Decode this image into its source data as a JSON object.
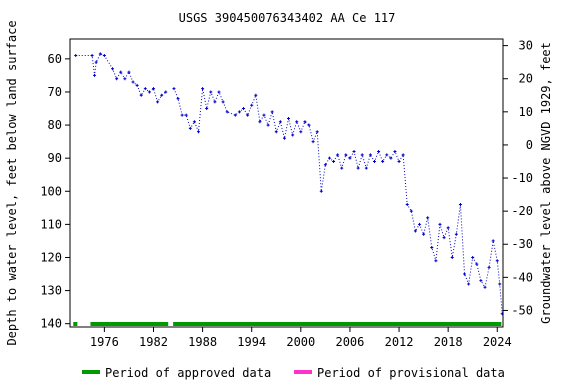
{
  "chart_data": {
    "type": "scatter",
    "title": "USGS 390450076343402 AA Ce 117",
    "y_label": "Depth to water level, feet below land surface",
    "y2_label": "Groundwater level above NGVD 1929, feet",
    "x": [
      1972.5,
      1974.5,
      1974.8,
      1975,
      1975.5,
      1976,
      1977,
      1977.5,
      1978,
      1978.5,
      1979,
      1979.5,
      1980,
      1980.5,
      1981,
      1981.5,
      1982,
      1982.5,
      1983,
      1983.5,
      1984,
      1984.5,
      1985,
      1985.5,
      1986,
      1986.5,
      1987,
      1987.5,
      1988,
      1988.5,
      1989,
      1989.5,
      1990,
      1990.5,
      1991,
      1992,
      1992.5,
      1993,
      1993.5,
      1994,
      1994.5,
      1995,
      1995.5,
      1996,
      1996.5,
      1997,
      1997.5,
      1998,
      1998.5,
      1999,
      1999.5,
      2000,
      2000.5,
      2001,
      2001.5,
      2002,
      2002.5,
      2003,
      2003.5,
      2004,
      2004.5,
      2005,
      2005.5,
      2006,
      2006.5,
      2007,
      2007.5,
      2008,
      2008.5,
      2009,
      2009.5,
      2010,
      2010.5,
      2011,
      2011.5,
      2012,
      2012.5,
      2013,
      2013.5,
      2014,
      2014.5,
      2015,
      2015.5,
      2016,
      2016.5,
      2017,
      2017.5,
      2018,
      2018.5,
      2019,
      2019.5,
      2020,
      2020.5,
      2021,
      2021.5,
      2022,
      2022.5,
      2023,
      2023.5,
      2024,
      2024.3,
      2024.6
    ],
    "values": [
      59,
      59,
      65,
      61,
      58.5,
      59,
      63,
      66,
      64,
      66,
      64,
      67,
      68,
      71,
      69,
      70,
      69,
      73,
      71,
      70,
      null,
      69,
      72,
      77,
      77,
      81,
      79,
      82,
      69,
      75,
      70,
      73,
      70,
      73,
      76,
      77,
      76,
      75,
      77,
      74,
      71,
      79,
      77,
      80,
      76,
      82,
      79,
      84,
      78,
      83,
      79,
      82,
      79,
      80,
      85,
      82,
      100,
      92,
      90,
      91,
      89,
      93,
      89,
      90,
      88,
      93,
      89,
      93,
      89,
      91,
      88,
      91,
      89,
      90,
      88,
      91,
      89,
      104,
      106,
      112,
      110,
      113,
      108,
      117,
      121,
      110,
      114,
      111,
      120,
      113,
      104,
      125,
      128,
      120,
      122,
      127,
      129,
      123,
      115,
      121,
      128,
      137
    ],
    "color": "#0000cc",
    "xlim": [
      1971.8,
      2024.7
    ],
    "xticks": [
      1976,
      1982,
      1988,
      1994,
      2000,
      2006,
      2012,
      2018,
      2024
    ],
    "ylim": [
      54,
      141
    ],
    "yticks": [
      60,
      70,
      80,
      90,
      100,
      110,
      120,
      130,
      140
    ],
    "y2lim": [
      -55,
      32
    ],
    "y2ticks": [
      30,
      20,
      10,
      0,
      -10,
      -20,
      -30,
      -40,
      -50
    ],
    "approved_periods": [
      [
        1972.2,
        1972.7
      ],
      [
        1974.3,
        1983.8
      ],
      [
        1984.4,
        2024.5
      ]
    ],
    "legend": [
      {
        "name": "Period of approved data",
        "color": "#009900"
      },
      {
        "name": "Period of provisional data",
        "color": "#ff33cc"
      }
    ]
  }
}
